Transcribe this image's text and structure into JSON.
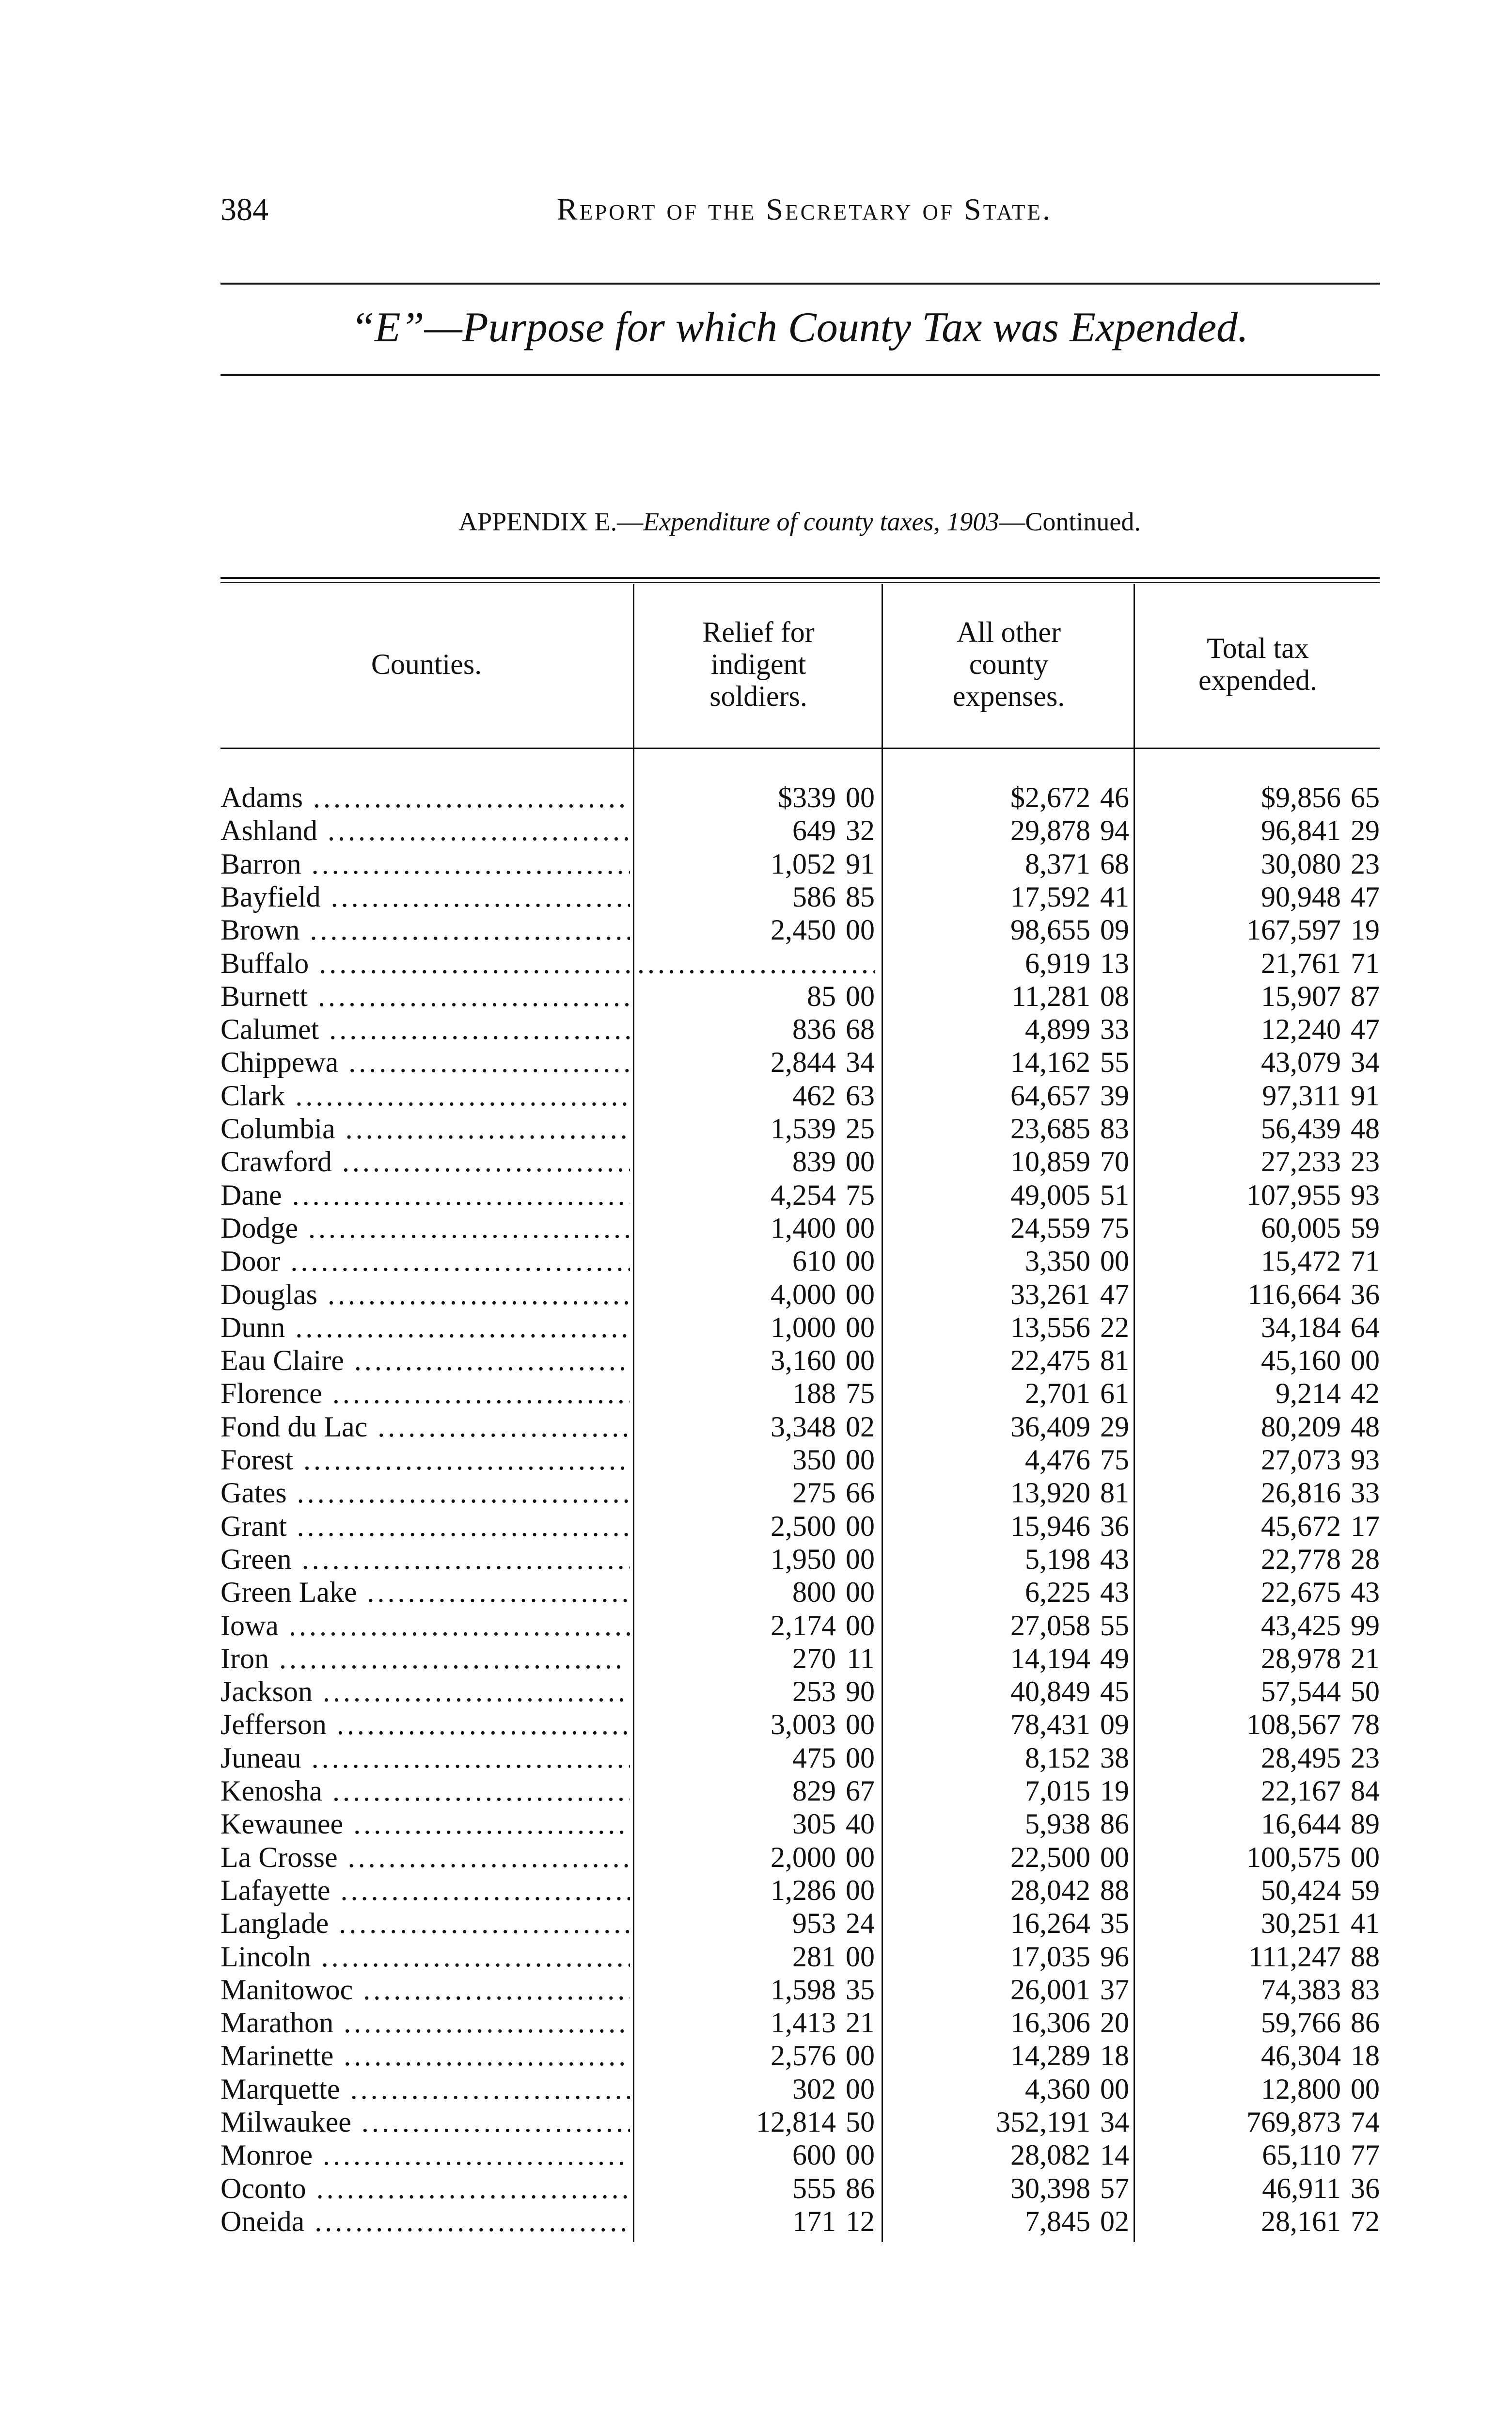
{
  "page": {
    "page_number": "384",
    "running_head": "Report of the Secretary of State.",
    "section_title": "“E”—Purpose for which County Tax was Expended.",
    "caption_prefix": "APPENDIX E.—",
    "caption_italic": "Expenditure of county taxes, 1903",
    "caption_suffix": "—Continued."
  },
  "table": {
    "headers": [
      "Counties.",
      "Relief for\nindigent\nsoldiers.",
      "All other\ncounty\nexpenses.",
      "Total tax\nexpended."
    ],
    "rows": [
      [
        "Adams",
        "$339 00",
        "$2,672 46",
        "$9,856 65"
      ],
      [
        "Ashland",
        "649 32",
        "29,878 94",
        "96,841 29"
      ],
      [
        "Barron",
        "1,052 91",
        "8,371 68",
        "30,080 23"
      ],
      [
        "Bayfield",
        "586 85",
        "17,592 41",
        "90,948 47"
      ],
      [
        "Brown",
        "2,450 00",
        "98,655 09",
        "167,597 19"
      ],
      [
        "Buffalo",
        null,
        "6,919 13",
        "21,761 71"
      ],
      [
        "Burnett",
        "85 00",
        "11,281 08",
        "15,907 87"
      ],
      [
        "Calumet",
        "836 68",
        "4,899 33",
        "12,240 47"
      ],
      [
        "Chippewa",
        "2,844 34",
        "14,162 55",
        "43,079 34"
      ],
      [
        "Clark",
        "462 63",
        "64,657 39",
        "97,311 91"
      ],
      [
        "Columbia",
        "1,539 25",
        "23,685 83",
        "56,439 48"
      ],
      [
        "Crawford",
        "839 00",
        "10,859 70",
        "27,233 23"
      ],
      [
        "Dane",
        "4,254 75",
        "49,005 51",
        "107,955 93"
      ],
      [
        "Dodge",
        "1,400 00",
        "24,559 75",
        "60,005 59"
      ],
      [
        "Door",
        "610 00",
        "3,350 00",
        "15,472 71"
      ],
      [
        "Douglas",
        "4,000 00",
        "33,261 47",
        "116,664 36"
      ],
      [
        "Dunn",
        "1,000 00",
        "13,556 22",
        "34,184 64"
      ],
      [
        "Eau Claire",
        "3,160 00",
        "22,475 81",
        "45,160 00"
      ],
      [
        "Florence",
        "188 75",
        "2,701 61",
        "9,214 42"
      ],
      [
        "Fond du Lac",
        "3,348 02",
        "36,409 29",
        "80,209 48"
      ],
      [
        "Forest",
        "350 00",
        "4,476 75",
        "27,073 93"
      ],
      [
        "Gates",
        "275 66",
        "13,920 81",
        "26,816 33"
      ],
      [
        "Grant",
        "2,500 00",
        "15,946 36",
        "45,672 17"
      ],
      [
        "Green",
        "1,950 00",
        "5,198 43",
        "22,778 28"
      ],
      [
        "Green Lake",
        "800 00",
        "6,225 43",
        "22,675 43"
      ],
      [
        "Iowa",
        "2,174 00",
        "27,058 55",
        "43,425 99"
      ],
      [
        "Iron",
        "270 11",
        "14,194 49",
        "28,978 21"
      ],
      [
        "Jackson",
        "253 90",
        "40,849 45",
        "57,544 50"
      ],
      [
        "Jefferson",
        "3,003 00",
        "78,431 09",
        "108,567 78"
      ],
      [
        "Juneau",
        "475 00",
        "8,152 38",
        "28,495 23"
      ],
      [
        "Kenosha",
        "829 67",
        "7,015 19",
        "22,167 84"
      ],
      [
        "Kewaunee",
        "305 40",
        "5,938 86",
        "16,644 89"
      ],
      [
        "La Crosse",
        "2,000 00",
        "22,500 00",
        "100,575 00"
      ],
      [
        "Lafayette",
        "1,286 00",
        "28,042 88",
        "50,424 59"
      ],
      [
        "Langlade",
        "953 24",
        "16,264 35",
        "30,251 41"
      ],
      [
        "Lincoln",
        "281 00",
        "17,035 96",
        "111,247 88"
      ],
      [
        "Manitowoc",
        "1,598 35",
        "26,001 37",
        "74,383 83"
      ],
      [
        "Marathon",
        "1,413 21",
        "16,306 20",
        "59,766 86"
      ],
      [
        "Marinette",
        "2,576 00",
        "14,289 18",
        "46,304 18"
      ],
      [
        "Marquette",
        "302 00",
        "4,360 00",
        "12,800 00"
      ],
      [
        "Milwaukee",
        "12,814 50",
        "352,191 34",
        "769,873 74"
      ],
      [
        "Monroe",
        "600 00",
        "28,082 14",
        "65,110 77"
      ],
      [
        "Oconto",
        "555 86",
        "30,398 57",
        "46,911 36"
      ],
      [
        "Oneida",
        "171 12",
        "7,845 02",
        "28,161 72"
      ]
    ]
  }
}
